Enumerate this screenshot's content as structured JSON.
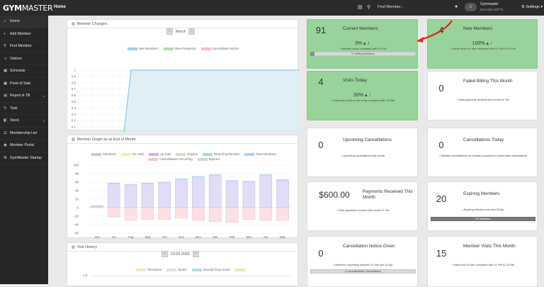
{
  "topbar": {
    "logo_bold": "GYM",
    "logo_light": "MASTER",
    "page_title": "Home",
    "search_placeholder": "Find Member...",
    "user_name": "Gymmaster",
    "user_site": "Icon Gym 24/7 Fi...",
    "settings_label": "Settings"
  },
  "sidebar": {
    "items": [
      {
        "label": "Home",
        "icon": "home-icon",
        "glyph": "⌂"
      },
      {
        "label": "Add Member",
        "icon": "add-member-icon",
        "glyph": "+"
      },
      {
        "label": "Find Member",
        "icon": "search-icon",
        "glyph": "⚲"
      },
      {
        "label": "Visitors",
        "icon": "visitors-icon",
        "glyph": "☺"
      },
      {
        "label": "Schedule",
        "icon": "calendar-icon",
        "glyph": "▦"
      },
      {
        "label": "Point of Sale",
        "icon": "pos-icon",
        "glyph": "▣"
      },
      {
        "label": "Report & Till",
        "icon": "report-icon",
        "glyph": "▤",
        "has_arrow": true
      },
      {
        "label": "Task",
        "icon": "task-icon",
        "glyph": "✎"
      },
      {
        "label": "Stock",
        "icon": "stock-icon",
        "glyph": "◧",
        "has_arrow": true
      },
      {
        "label": "Membership List",
        "icon": "list-icon",
        "glyph": "☰"
      },
      {
        "label": "Member Portal",
        "icon": "portal-icon",
        "glyph": "◉"
      },
      {
        "label": "GymMaster Startup",
        "icon": "startup-icon",
        "glyph": "⚙"
      }
    ]
  },
  "member_changes": {
    "title": "Member Changes",
    "month": "March",
    "legend": [
      {
        "name": "New Members",
        "color": "#9fcfe8"
      },
      {
        "name": "New Prospects",
        "color": "#b9dcb2"
      },
      {
        "name": "Cancellation Notice",
        "color": "#f6c0c0"
      }
    ],
    "chart_data": {
      "type": "line",
      "x": [
        "01 Mar",
        "08 Mar",
        "15 Mar",
        "22 Mar",
        "29 Mar"
      ],
      "y_ticks": [
        "0",
        "0.1",
        "0.2",
        "0.3",
        "0.4",
        "0.5",
        "0.6",
        "0.7",
        "0.8",
        "0.9",
        "1"
      ],
      "ylim": [
        0,
        1
      ],
      "x_tick_labels": [
        "01 Mar",
        "08 Mar",
        "15 Mar",
        "22 Mar"
      ],
      "series": [
        {
          "name": "New Members",
          "points": [
            [
              0,
              0
            ],
            [
              6.5,
              0
            ],
            [
              7.5,
              1
            ],
            [
              31,
              1
            ]
          ]
        },
        {
          "name": "New Prospects",
          "points": [
            [
              0,
              0
            ],
            [
              31,
              0
            ]
          ]
        },
        {
          "name": "Cancellation Notice",
          "points": [
            [
              0,
              0
            ],
            [
              31,
              0
            ]
          ]
        }
      ]
    }
  },
  "member_graph": {
    "title": "Member Graph as at End of Month",
    "legend": [
      {
        "name": "Members",
        "color": "#c9c3ec"
      },
      {
        "name": "On Hold",
        "color": "#f6eba6"
      },
      {
        "name": "Up Sale",
        "color": "#cdb5ee"
      },
      {
        "name": "Rejoins",
        "color": "#c6e6c3"
      },
      {
        "name": "Returning Member",
        "color": "#a7d7ea"
      },
      {
        "name": "New Members",
        "color": "#a9d3f2"
      },
      {
        "name": "Cancellations Occurring",
        "color": "#f7c8c8"
      },
      {
        "name": "Expired",
        "color": "#d6d6d6"
      }
    ],
    "chart_data": {
      "type": "bar",
      "categories": [
        "Jun",
        "Jul",
        "Aug",
        "Sep",
        "Oct",
        "Nov",
        "Dec",
        "Jan",
        "Feb",
        "Mar",
        "Apr",
        "May"
      ],
      "y_ticks": [
        "100",
        "80",
        "60",
        "40",
        "20",
        "0",
        "-20",
        "-40",
        "-60"
      ],
      "ylim": [
        -60,
        100
      ],
      "series": [
        {
          "name": "Members",
          "values": [
            5,
            58,
            55,
            58,
            60,
            68,
            74,
            78,
            64,
            62,
            78,
            66
          ]
        },
        {
          "name": "Cancellations Occurring",
          "values": [
            0,
            -22,
            -30,
            -28,
            -28,
            -25,
            -30,
            -33,
            -35,
            -28,
            -30,
            -30
          ]
        }
      ]
    }
  },
  "visit_history": {
    "title": "Visit History",
    "date": "23-03-2020",
    "legend": [
      {
        "name": "Reception",
        "color": "#fbe3c7"
      },
      {
        "name": "Studio",
        "color": "#e1e1e1"
      },
      {
        "name": "Second Floor Kiosk",
        "color": "#b9dcea"
      },
      {
        "name": "",
        "color": "#f6e6b3"
      }
    ],
    "y_tick": "1.0"
  },
  "cards": [
    {
      "id": "current-members",
      "green": true,
      "number": "91",
      "label": "Current Members",
      "pct": "3%",
      "sub": "• Member today compared with 23 Feb",
      "bar": "5 Visiting Members"
    },
    {
      "id": "new-members",
      "green": true,
      "number": "4",
      "label": "New Members",
      "pct": "100%",
      "sub": "• Joined since 01 Mar compared with 01 Feb to 23 Feb"
    },
    {
      "id": "visits-today",
      "green": true,
      "number": "4",
      "label": "Visits Today",
      "pct": "33%",
      "sub": "• Successful visits so far today compared with 16 Mar"
    },
    {
      "id": "failed-billing",
      "green": false,
      "number": "0",
      "label": "Failed Billing This Month",
      "sub": "• Total payments received this month Ex Tax"
    },
    {
      "id": "upcoming-cancellations",
      "green": false,
      "number": "0",
      "label": "Upcoming Cancellations",
      "sub": "• Upcoming cancellations this month"
    },
    {
      "id": "cancellations-today",
      "green": false,
      "number": "0",
      "label": "Cancellations Today",
      "sub": "• Member cancellations as of today compared to yesterdays cancellations"
    },
    {
      "id": "payments-received",
      "green": false,
      "number": "$600.00",
      "label": "Payments Received This Month",
      "sub": "• Total payments received this month Ex Tax"
    },
    {
      "id": "expiring-members",
      "green": false,
      "number": "20",
      "label": "Expiring Members",
      "sub": "• Expiring between now and 23 Apr",
      "bar": "22 Members"
    },
    {
      "id": "cancellation-notice",
      "green": false,
      "number": "0",
      "label": "Cancellation Notice Given",
      "sub": "• Members cancelling between 01 Mar and 23 Apr",
      "bar": "0 Uncontactable Cancellations"
    },
    {
      "id": "member-visits",
      "green": false,
      "number": "15",
      "label": "Member Visits This Month",
      "sub": "• Visits from 01 Mar compared with 01 Feb to 23 Feb"
    }
  ]
}
